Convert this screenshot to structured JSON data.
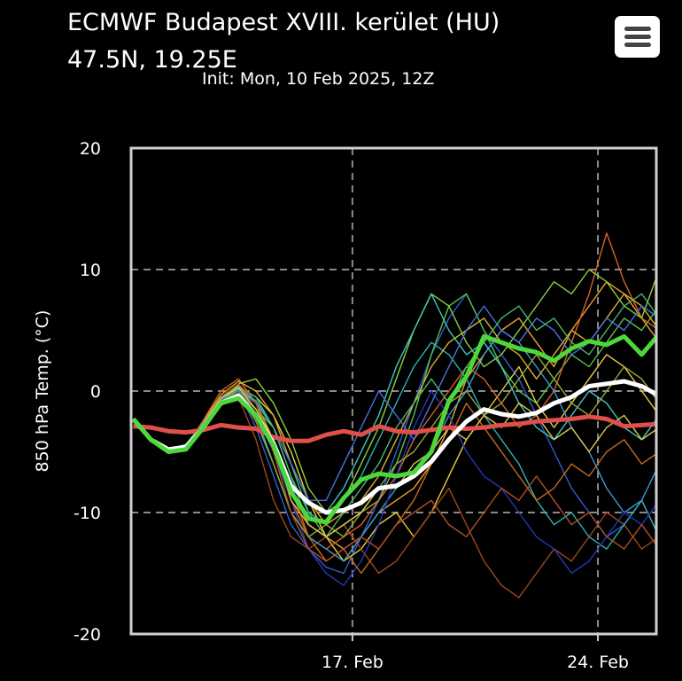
{
  "header": {
    "title": "ECMWF Budapest XVIII. kerület (HU)",
    "location": "47.5N, 19.25E",
    "init": "Init: Mon, 10 Feb 2025, 12Z",
    "menu_icon": "hamburger-menu-icon"
  },
  "chart_data": {
    "type": "line",
    "ylabel": "850 hPa Temp. (°C)",
    "ylim": [
      -20,
      20
    ],
    "yticks": [
      20,
      10,
      0,
      -10,
      -20
    ],
    "xlim": [
      "2025-02-10T16:30",
      "2025-02-25T16:00"
    ],
    "xticks": [
      {
        "date": "2025-02-17T00:00",
        "label": "17. Feb"
      },
      {
        "date": "2025-02-24T00:00",
        "label": "24. Feb"
      }
    ],
    "grid": true,
    "x": [
      "2025-02-10T18:00",
      "2025-02-11T06:00",
      "2025-02-11T18:00",
      "2025-02-12T06:00",
      "2025-02-12T18:00",
      "2025-02-13T06:00",
      "2025-02-13T18:00",
      "2025-02-14T06:00",
      "2025-02-14T18:00",
      "2025-02-15T06:00",
      "2025-02-15T18:00",
      "2025-02-16T06:00",
      "2025-02-16T18:00",
      "2025-02-17T06:00",
      "2025-02-17T18:00",
      "2025-02-18T06:00",
      "2025-02-18T18:00",
      "2025-02-19T06:00",
      "2025-02-19T18:00",
      "2025-02-20T06:00",
      "2025-02-20T18:00",
      "2025-02-21T06:00",
      "2025-02-21T18:00",
      "2025-02-22T06:00",
      "2025-02-22T18:00",
      "2025-02-23T06:00",
      "2025-02-23T18:00",
      "2025-02-24T06:00",
      "2025-02-24T18:00",
      "2025-02-25T06:00",
      "2025-02-25T18:00"
    ],
    "members": [
      {
        "color": "#2f5fd0",
        "values": [
          -2.3,
          -4,
          -4.9,
          -4.5,
          -2.5,
          -0.5,
          0,
          -3,
          -7,
          -11,
          -13,
          -14.5,
          -15,
          -12,
          -9,
          -5,
          -1,
          3,
          6,
          8,
          5,
          3,
          1,
          -2,
          -5,
          -8,
          -10,
          -12,
          -11,
          -9,
          -12
        ]
      },
      {
        "color": "#f0a030",
        "values": [
          -2.3,
          -4,
          -5,
          -4.6,
          -2.8,
          -0.8,
          0.5,
          -1,
          -4,
          -8,
          -11,
          -12,
          -13,
          -12,
          -10,
          -9,
          -8,
          -6,
          -3,
          1,
          3,
          5,
          6,
          4,
          2,
          5,
          7,
          9,
          8,
          6,
          4
        ]
      },
      {
        "color": "#5cc04a",
        "values": [
          -2.3,
          -3.9,
          -4.8,
          -4.4,
          -2.6,
          -1,
          -0.2,
          -1.5,
          -3,
          -6,
          -10,
          -12,
          -11,
          -10,
          -8,
          -6,
          -2,
          3,
          7,
          8,
          5,
          2,
          0,
          -1,
          1,
          3,
          2,
          4,
          6,
          5,
          7
        ]
      },
      {
        "color": "#e8d040",
        "values": [
          -2.3,
          -4,
          -5,
          -4.7,
          -3,
          -0.5,
          0.3,
          -0.5,
          -2,
          -5,
          -9,
          -12,
          -14,
          -13,
          -11,
          -10,
          -12,
          -10,
          -7,
          -4,
          -2,
          0,
          2,
          -1,
          -3,
          -1,
          1,
          3,
          2,
          0,
          -2
        ]
      },
      {
        "color": "#a0461c",
        "values": [
          -2.3,
          -4.1,
          -5.1,
          -4.8,
          -3.2,
          -1.2,
          -0.5,
          -4,
          -9,
          -12,
          -13,
          -12,
          -11,
          -13,
          -15,
          -14,
          -12,
          -10,
          -8,
          -11,
          -14,
          -16,
          -17,
          -15,
          -13,
          -14,
          -12,
          -10,
          -11,
          -13,
          -12
        ]
      },
      {
        "color": "#30b0b0",
        "values": [
          -2.3,
          -4,
          -4.9,
          -4.5,
          -2.7,
          -0.8,
          0.4,
          -0.5,
          -3,
          -7,
          -10,
          -11,
          -9,
          -7,
          -4,
          -1,
          2,
          4,
          3,
          1,
          -2,
          -4,
          -6,
          -9,
          -11,
          -10,
          -12,
          -13,
          -11,
          -9,
          -12
        ]
      },
      {
        "color": "#d8602a",
        "values": [
          -2.3,
          -4,
          -5,
          -4.6,
          -2.4,
          0,
          1,
          -1,
          -5,
          -9,
          -12,
          -13,
          -12,
          -11,
          -9,
          -7,
          -4,
          -2,
          0,
          2,
          1,
          -1,
          -3,
          -2,
          0,
          4,
          8,
          13,
          9,
          6,
          5
        ]
      },
      {
        "color": "#3c9ad8",
        "values": [
          -2.3,
          -4,
          -4.9,
          -4.4,
          -2.6,
          -0.7,
          0.1,
          -2,
          -6,
          -10,
          -12,
          -13,
          -14,
          -12,
          -10,
          -8,
          -7,
          -5,
          -2,
          0,
          3,
          5,
          4,
          2,
          0,
          -3,
          -5,
          -8,
          -10,
          -9,
          -6
        ]
      },
      {
        "color": "#8ad040",
        "values": [
          -2.3,
          -3.9,
          -4.8,
          -4.5,
          -2.9,
          -1,
          0.6,
          1,
          -1,
          -4,
          -8,
          -10,
          -9,
          -6,
          -3,
          1,
          5,
          8,
          7,
          4,
          2,
          3,
          5,
          7,
          9,
          8,
          10,
          9,
          7,
          6,
          10
        ]
      },
      {
        "color": "#2238b8",
        "values": [
          -2.3,
          -4,
          -5,
          -4.6,
          -2.8,
          -0.9,
          -0.3,
          -2,
          -5,
          -9,
          -13,
          -15,
          -16,
          -14,
          -11,
          -7,
          -3,
          0,
          -2,
          -5,
          -7,
          -8,
          -10,
          -12,
          -13,
          -15,
          -14,
          -12,
          -10,
          -11,
          -9
        ]
      },
      {
        "color": "#d8b030",
        "values": [
          -2.3,
          -4,
          -4.9,
          -4.5,
          -2.5,
          -0.3,
          0.8,
          0,
          -2,
          -6,
          -9,
          -11,
          -10,
          -9,
          -7,
          -4,
          -1,
          2,
          4,
          5,
          6,
          4,
          3,
          1,
          3,
          5,
          4,
          6,
          8,
          7,
          5
        ]
      },
      {
        "color": "#c86a20",
        "values": [
          -2.3,
          -4.1,
          -5,
          -4.7,
          -3,
          -1,
          0,
          -1.5,
          -4,
          -8,
          -12,
          -14,
          -13,
          -15,
          -13,
          -11,
          -9,
          -6,
          -4,
          -1,
          -3,
          -5,
          -7,
          -9,
          -8,
          -6,
          -7,
          -5,
          -4,
          -6,
          -5
        ]
      },
      {
        "color": "#40c8c0",
        "values": [
          -2.3,
          -4,
          -4.9,
          -4.6,
          -2.7,
          -0.6,
          0.2,
          -1,
          -3,
          -6,
          -9,
          -10,
          -8,
          -5,
          -2,
          2,
          5,
          8,
          5,
          3,
          4,
          2,
          -1,
          -3,
          -4,
          -2,
          0,
          -1,
          -3,
          -4,
          -2
        ]
      },
      {
        "color": "#9aa838",
        "values": [
          -2.3,
          -4,
          -5,
          -4.6,
          -2.9,
          -0.8,
          -0.2,
          -2.5,
          -6,
          -10,
          -12,
          -11,
          -12,
          -10,
          -9,
          -6,
          -5,
          -3,
          -1,
          0,
          -2,
          -1,
          1,
          3,
          1,
          -1,
          -2,
          0,
          2,
          1,
          -1
        ]
      },
      {
        "color": "#4a70e0",
        "values": [
          -2.3,
          -4,
          -4.9,
          -4.5,
          -2.6,
          -0.7,
          0,
          -1,
          -3,
          -6,
          -9,
          -9,
          -6,
          -3,
          0,
          -2,
          -4,
          -1,
          2,
          5,
          7,
          5,
          4,
          6,
          5,
          3,
          4,
          6,
          5,
          7,
          6
        ]
      },
      {
        "color": "#b05028",
        "values": [
          -2.3,
          -4,
          -5,
          -4.6,
          -2.8,
          -0.5,
          0.6,
          -1,
          -5,
          -10,
          -13,
          -14,
          -13,
          -12,
          -13,
          -11,
          -10,
          -9,
          -11,
          -12,
          -10,
          -8,
          -9,
          -7,
          -9,
          -11,
          -10,
          -12,
          -13,
          -11,
          -13
        ]
      },
      {
        "color": "#48b868",
        "values": [
          -2.3,
          -4,
          -4.9,
          -4.5,
          -2.7,
          -0.9,
          0.2,
          -0.8,
          -3,
          -7,
          -11,
          -12,
          -10,
          -8,
          -6,
          -3,
          -1,
          1,
          -1,
          2,
          4,
          6,
          7,
          5,
          6,
          4,
          3,
          5,
          7,
          8,
          6
        ]
      },
      {
        "color": "#e0c850",
        "values": [
          -2.3,
          -4,
          -5,
          -4.6,
          -2.7,
          -0.6,
          0.3,
          -1.5,
          -4,
          -9,
          -11,
          -12,
          -11,
          -10,
          -8,
          -8,
          -6,
          -5,
          -3,
          -4,
          -2,
          -3,
          -1,
          -2,
          -4,
          -3,
          -5,
          -3,
          -2,
          -4,
          -3
        ]
      }
    ],
    "climate": {
      "color": "#e0504a",
      "values": [
        -2.9,
        -3,
        -3.3,
        -3.4,
        -3.2,
        -2.8,
        -3,
        -3.1,
        -3.8,
        -4.1,
        -4.1,
        -3.6,
        -3.3,
        -3.6,
        -2.9,
        -3.3,
        -3.4,
        -3.2,
        -3,
        -3.1,
        -3,
        -2.8,
        -2.7,
        -2.5,
        -2.4,
        -2.3,
        -2.1,
        -2.3,
        -2.9,
        -2.8,
        -2.7
      ]
    },
    "ensemble_mean": {
      "color": "#ffffff",
      "values": [
        -2.3,
        -4,
        -4.8,
        -4.6,
        -3,
        -1,
        -0.4,
        -2,
        -4.3,
        -7.8,
        -9.2,
        -10,
        -9.8,
        -9.2,
        -8,
        -7.8,
        -7,
        -5.8,
        -4,
        -2.5,
        -1.5,
        -1.9,
        -2.1,
        -1.8,
        -1,
        -0.5,
        0.4,
        0.6,
        0.8,
        0.4,
        -0.4
      ]
    },
    "control": {
      "color": "#4cd83a",
      "values": [
        -2.3,
        -4,
        -5,
        -4.8,
        -3,
        -1,
        -0.6,
        -2,
        -4.5,
        -8.3,
        -10.5,
        -10.8,
        -8.8,
        -7.3,
        -6.8,
        -7,
        -6.7,
        -5,
        -0.8,
        1.2,
        4.5,
        4,
        3.5,
        3.2,
        2.5,
        3.5,
        4.1,
        3.8,
        4.5,
        3,
        4.7
      ]
    }
  }
}
